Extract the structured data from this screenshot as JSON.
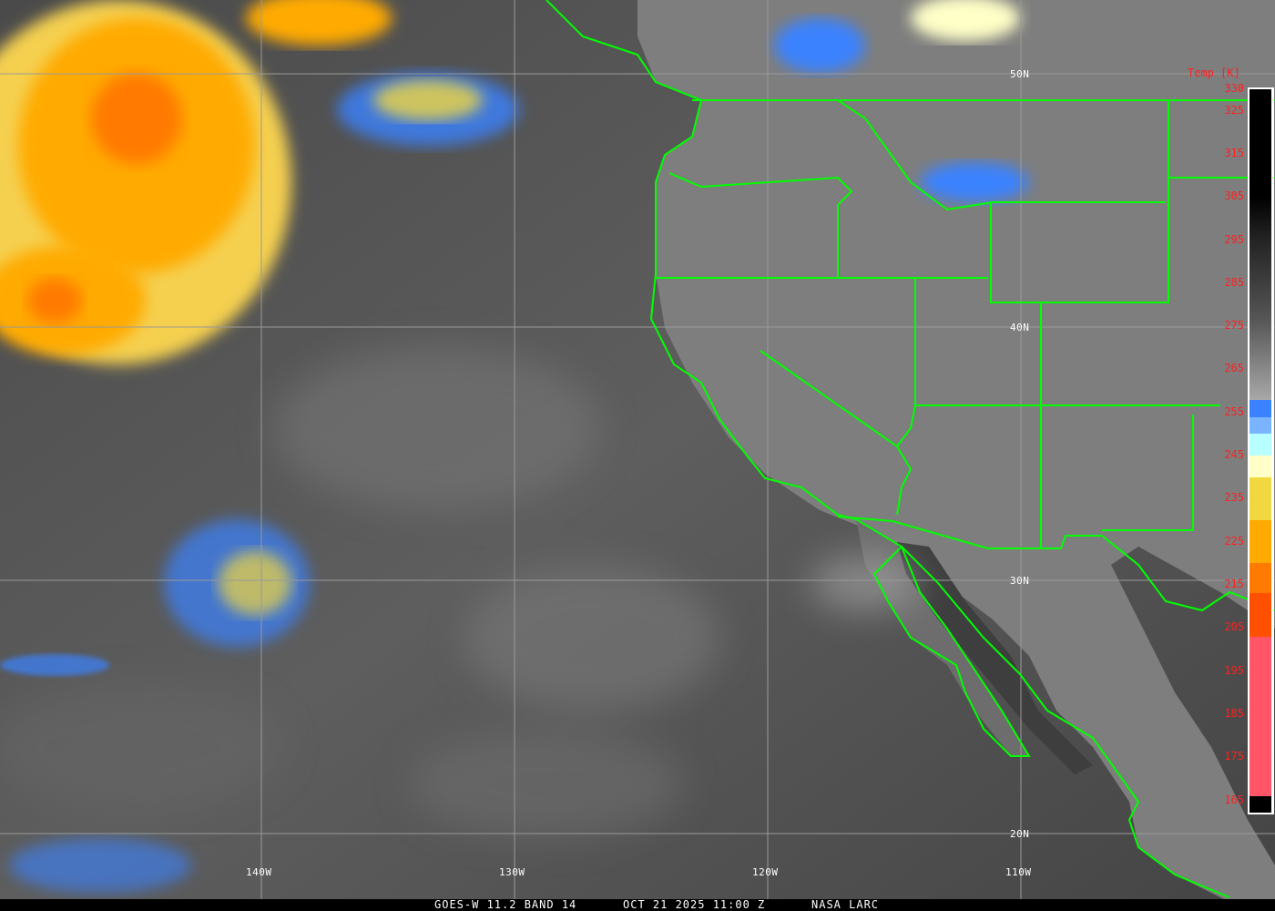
{
  "caption": {
    "product": "GOES-W 11.2 BAND 14",
    "datetime": "OCT 21 2025 11:00 Z",
    "source": "NASA LARC"
  },
  "grid_labels": {
    "latitudes": [
      "50N",
      "40N",
      "30N",
      "20N"
    ],
    "longitudes": [
      "140W",
      "130W",
      "120W",
      "110W"
    ]
  },
  "colorbar": {
    "title": "Temp [K]",
    "ticks": [
      "330",
      "325",
      "315",
      "305",
      "295",
      "285",
      "275",
      "265",
      "255",
      "245",
      "235",
      "225",
      "215",
      "205",
      "195",
      "185",
      "175",
      "165"
    ],
    "range_k": [
      163,
      330
    ],
    "segments": [
      {
        "from": 330,
        "to": 305,
        "color": "#000000"
      },
      {
        "from": 305,
        "to": 258,
        "color": "gradient-black-to-gray"
      },
      {
        "from": 258,
        "to": 254,
        "color": "#3a82ff"
      },
      {
        "from": 254,
        "to": 250,
        "color": "#7ab4ff"
      },
      {
        "from": 250,
        "to": 245,
        "color": "#b8ffff"
      },
      {
        "from": 245,
        "to": 240,
        "color": "#ffffc8"
      },
      {
        "from": 240,
        "to": 230,
        "color": "#f2d840"
      },
      {
        "from": 230,
        "to": 220,
        "color": "#ffaa00"
      },
      {
        "from": 220,
        "to": 213,
        "color": "#ff7a00"
      },
      {
        "from": 213,
        "to": 203,
        "color": "#ff5000"
      },
      {
        "from": 203,
        "to": 166,
        "color": "#ff5566"
      }
    ]
  },
  "colors": {
    "borders": "#00ff00",
    "labels": "#ffffff",
    "scale_text": "#ff2020",
    "grid": "#9a9a9a"
  }
}
